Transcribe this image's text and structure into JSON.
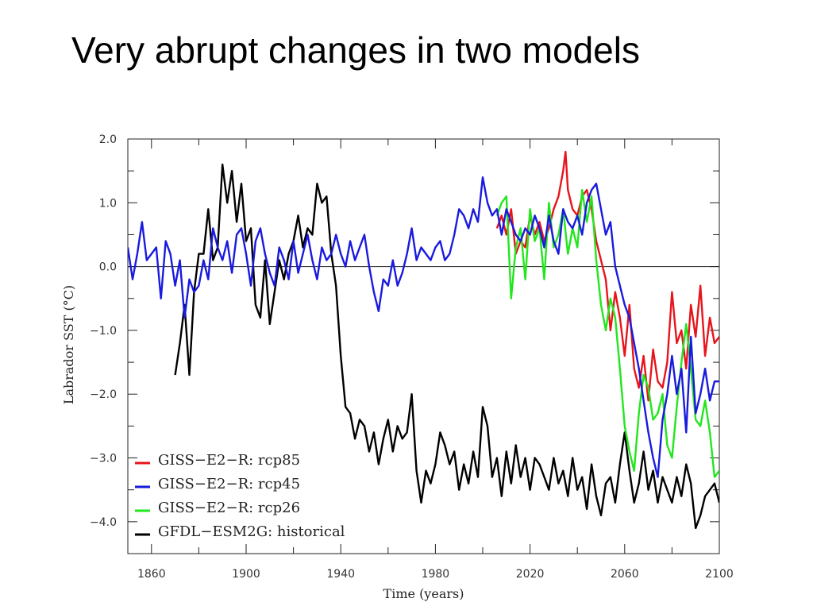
{
  "slide": {
    "title": "Very abrupt changes in two models"
  },
  "chart_data": {
    "type": "line",
    "title": "",
    "xlabel": "Time (years)",
    "ylabel": "Labrador SST (°C)",
    "xlim": [
      1850,
      2100
    ],
    "ylim": [
      -4.5,
      2.0
    ],
    "xticks": [
      1860,
      1900,
      1940,
      1980,
      2020,
      2060,
      2100
    ],
    "yticks": [
      {
        "v": 2.0,
        "label": "2.0"
      },
      {
        "v": 1.0,
        "label": "1.0"
      },
      {
        "v": 0.0,
        "label": "0.0"
      },
      {
        "v": -1.0,
        "label": "−1.0"
      },
      {
        "v": -2.0,
        "label": "−2.0"
      },
      {
        "v": -3.0,
        "label": "−3.0"
      },
      {
        "v": -4.0,
        "label": "−4.0"
      }
    ],
    "zero_line": true,
    "grid": false,
    "legend_position": "bottom-left",
    "series": [
      {
        "name": "GISS−E2−R:  rcp85",
        "color": "#e8141b",
        "x": [
          2006,
          2008,
          2010,
          2012,
          2014,
          2016,
          2018,
          2020,
          2022,
          2024,
          2026,
          2028,
          2030,
          2032,
          2034,
          2035,
          2036,
          2038,
          2040,
          2042,
          2044,
          2046,
          2048,
          2050,
          2052,
          2054,
          2056,
          2058,
          2060,
          2062,
          2064,
          2066,
          2068,
          2070,
          2072,
          2074,
          2076,
          2078,
          2080,
          2082,
          2084,
          2086,
          2088,
          2090,
          2092,
          2094,
          2096,
          2098,
          2100
        ],
        "values": [
          0.6,
          0.8,
          0.5,
          0.9,
          0.2,
          0.4,
          0.3,
          0.8,
          0.5,
          0.7,
          0.4,
          0.6,
          0.9,
          1.1,
          1.5,
          1.8,
          1.2,
          0.9,
          0.8,
          1.1,
          1.2,
          0.9,
          0.4,
          0.1,
          -0.2,
          -1.0,
          -0.4,
          -0.8,
          -1.4,
          -0.6,
          -1.6,
          -1.9,
          -1.4,
          -2.1,
          -1.3,
          -1.8,
          -1.9,
          -1.5,
          -0.4,
          -1.2,
          -1.0,
          -1.6,
          -0.6,
          -1.1,
          -0.3,
          -1.4,
          -0.8,
          -1.2,
          -1.1
        ]
      },
      {
        "name": "GISS−E2−R:  rcp45",
        "color": "#1a1adf",
        "x": [
          1850,
          1852,
          1854,
          1856,
          1858,
          1860,
          1862,
          1864,
          1866,
          1868,
          1870,
          1872,
          1874,
          1876,
          1878,
          1880,
          1882,
          1884,
          1886,
          1888,
          1890,
          1892,
          1894,
          1896,
          1898,
          1900,
          1902,
          1904,
          1906,
          1908,
          1910,
          1912,
          1914,
          1916,
          1918,
          1920,
          1922,
          1924,
          1926,
          1928,
          1930,
          1932,
          1934,
          1936,
          1938,
          1940,
          1942,
          1944,
          1946,
          1948,
          1950,
          1952,
          1954,
          1956,
          1958,
          1960,
          1962,
          1964,
          1966,
          1968,
          1970,
          1972,
          1974,
          1976,
          1978,
          1980,
          1982,
          1984,
          1986,
          1988,
          1990,
          1992,
          1994,
          1996,
          1998,
          2000,
          2002,
          2004,
          2006,
          2008,
          2010,
          2012,
          2014,
          2016,
          2018,
          2020,
          2022,
          2024,
          2026,
          2028,
          2030,
          2032,
          2034,
          2036,
          2038,
          2040,
          2042,
          2044,
          2046,
          2048,
          2050,
          2052,
          2054,
          2056,
          2058,
          2060,
          2062,
          2064,
          2066,
          2068,
          2070,
          2072,
          2074,
          2076,
          2078,
          2080,
          2082,
          2084,
          2086,
          2088,
          2090,
          2092,
          2094,
          2096,
          2098,
          2100
        ],
        "values": [
          0.3,
          -0.2,
          0.2,
          0.7,
          0.1,
          0.2,
          0.3,
          -0.5,
          0.4,
          0.2,
          -0.3,
          0.1,
          -0.8,
          -0.2,
          -0.4,
          -0.3,
          0.1,
          -0.2,
          0.6,
          0.3,
          0.1,
          0.4,
          -0.1,
          0.5,
          0.6,
          0.2,
          -0.3,
          0.4,
          0.6,
          0.2,
          -0.1,
          -0.3,
          0.3,
          0.1,
          -0.2,
          0.4,
          -0.1,
          0.2,
          0.5,
          0.1,
          -0.2,
          0.3,
          0.1,
          0.2,
          0.5,
          0.2,
          0.0,
          0.4,
          0.1,
          0.3,
          0.5,
          0.0,
          -0.4,
          -0.7,
          -0.2,
          -0.3,
          0.1,
          -0.3,
          -0.1,
          0.2,
          0.6,
          0.1,
          0.3,
          0.2,
          0.1,
          0.3,
          0.4,
          0.1,
          0.2,
          0.5,
          0.9,
          0.8,
          0.6,
          0.9,
          0.7,
          1.4,
          1.0,
          0.8,
          0.9,
          0.5,
          0.9,
          0.7,
          0.5,
          0.4,
          0.6,
          0.5,
          0.8,
          0.6,
          0.3,
          0.8,
          0.4,
          0.2,
          0.9,
          0.7,
          0.6,
          0.8,
          0.5,
          1.0,
          1.2,
          1.3,
          0.9,
          0.5,
          0.7,
          0.0,
          -0.3,
          -0.6,
          -0.8,
          -1.2,
          -1.6,
          -2.1,
          -2.6,
          -3.0,
          -3.3,
          -2.4,
          -2.0,
          -1.4,
          -2.0,
          -1.6,
          -2.6,
          -1.1,
          -2.3,
          -2.0,
          -1.6,
          -2.1,
          -1.8,
          -1.8
        ]
      },
      {
        "name": "GISS−E2−R:  rcp26",
        "color": "#22e61e",
        "x": [
          2006,
          2008,
          2010,
          2012,
          2014,
          2016,
          2018,
          2020,
          2022,
          2024,
          2026,
          2028,
          2030,
          2032,
          2034,
          2036,
          2038,
          2040,
          2042,
          2044,
          2046,
          2048,
          2050,
          2052,
          2054,
          2056,
          2058,
          2060,
          2062,
          2064,
          2066,
          2068,
          2070,
          2072,
          2074,
          2076,
          2078,
          2080,
          2082,
          2084,
          2086,
          2088,
          2090,
          2092,
          2094,
          2096,
          2098,
          2100
        ],
        "values": [
          0.8,
          1.0,
          1.1,
          -0.5,
          0.3,
          0.6,
          -0.2,
          0.9,
          0.4,
          0.6,
          -0.2,
          1.0,
          0.3,
          0.5,
          0.9,
          0.2,
          0.6,
          0.3,
          1.2,
          0.7,
          1.1,
          0.1,
          -0.6,
          -1.0,
          -0.5,
          -0.8,
          -1.6,
          -2.5,
          -2.9,
          -3.2,
          -2.3,
          -1.7,
          -1.9,
          -2.4,
          -2.3,
          -2.0,
          -2.8,
          -3.0,
          -2.2,
          -1.5,
          -0.9,
          -1.6,
          -2.4,
          -2.5,
          -2.1,
          -2.6,
          -3.3,
          -3.2
        ]
      },
      {
        "name": "GFDL−ESM2G:  historical",
        "color": "#000000",
        "x": [
          1870,
          1872,
          1874,
          1876,
          1878,
          1880,
          1882,
          1884,
          1886,
          1888,
          1890,
          1892,
          1894,
          1896,
          1898,
          1900,
          1902,
          1904,
          1906,
          1908,
          1910,
          1912,
          1914,
          1916,
          1918,
          1920,
          1922,
          1924,
          1926,
          1928,
          1930,
          1932,
          1934,
          1936,
          1938,
          1940,
          1942,
          1944,
          1946,
          1948,
          1950,
          1952,
          1954,
          1956,
          1958,
          1960,
          1962,
          1964,
          1966,
          1968,
          1970,
          1972,
          1974,
          1976,
          1978,
          1980,
          1982,
          1984,
          1986,
          1988,
          1990,
          1992,
          1994,
          1996,
          1998,
          2000,
          2002,
          2004,
          2006,
          2008,
          2010,
          2012,
          2014,
          2016,
          2018,
          2020,
          2022,
          2024,
          2026,
          2028,
          2030,
          2032,
          2034,
          2036,
          2038,
          2040,
          2042,
          2044,
          2046,
          2048,
          2050,
          2052,
          2054,
          2056,
          2058,
          2060,
          2062,
          2064,
          2066,
          2068,
          2070,
          2072,
          2074,
          2076,
          2078,
          2080,
          2082,
          2084,
          2086,
          2088,
          2090,
          2092,
          2094,
          2096,
          2098,
          2100
        ],
        "values": [
          -1.7,
          -1.2,
          -0.6,
          -1.7,
          -0.4,
          0.2,
          0.2,
          0.9,
          0.1,
          0.3,
          1.6,
          1.0,
          1.5,
          0.7,
          1.3,
          0.4,
          0.6,
          -0.6,
          -0.8,
          0.1,
          -0.9,
          -0.4,
          0.1,
          -0.2,
          0.2,
          0.4,
          0.8,
          0.3,
          0.6,
          0.5,
          1.3,
          1.0,
          1.1,
          0.2,
          -0.3,
          -1.4,
          -2.2,
          -2.3,
          -2.7,
          -2.4,
          -2.5,
          -2.9,
          -2.6,
          -3.1,
          -2.7,
          -2.4,
          -2.9,
          -2.5,
          -2.7,
          -2.6,
          -2.0,
          -3.2,
          -3.7,
          -3.2,
          -3.4,
          -3.1,
          -2.6,
          -2.8,
          -3.1,
          -2.9,
          -3.5,
          -3.1,
          -3.4,
          -2.9,
          -3.3,
          -2.2,
          -2.5,
          -3.3,
          -3.0,
          -3.6,
          -2.9,
          -3.4,
          -2.8,
          -3.3,
          -3.0,
          -3.5,
          -3.0,
          -3.1,
          -3.3,
          -3.5,
          -3.0,
          -3.4,
          -3.2,
          -3.6,
          -3.0,
          -3.5,
          -3.3,
          -3.8,
          -3.1,
          -3.6,
          -3.9,
          -3.4,
          -3.3,
          -3.7,
          -3.1,
          -2.6,
          -3.2,
          -3.7,
          -3.4,
          -2.9,
          -3.5,
          -3.2,
          -3.7,
          -3.3,
          -3.5,
          -3.7,
          -3.3,
          -3.6,
          -3.1,
          -3.4,
          -4.1,
          -3.9,
          -3.6,
          -3.5,
          -3.4,
          -3.7
        ]
      }
    ]
  }
}
